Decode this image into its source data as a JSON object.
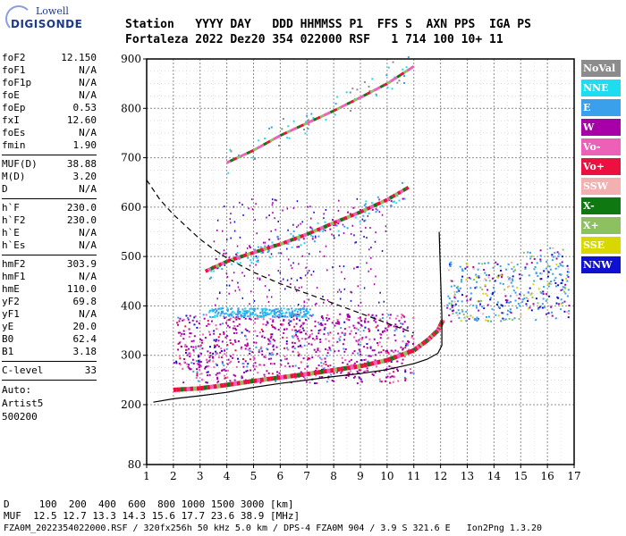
{
  "logo": {
    "line1": "Lowell",
    "line2": "DIGISONDE"
  },
  "header": {
    "line1": "Station   YYYY DAY   DDD HHMMSS P1  FFS S  AXN PPS  IGA PS",
    "line2": "Fortaleza 2022 Dez20 354 022000 RSF   1 714 100 10+ 11"
  },
  "params": {
    "group1": [
      {
        "name": "foF2",
        "value": "12.150"
      },
      {
        "name": "foF1",
        "value": "N/A"
      },
      {
        "name": "foF1p",
        "value": "N/A"
      },
      {
        "name": "foE",
        "value": "N/A"
      },
      {
        "name": "foEp",
        "value": "0.53"
      },
      {
        "name": "fxI",
        "value": "12.60"
      },
      {
        "name": "foEs",
        "value": "N/A"
      },
      {
        "name": "fmin",
        "value": "1.90"
      }
    ],
    "group2": [
      {
        "name": "MUF(D)",
        "value": "38.88"
      },
      {
        "name": "M(D)",
        "value": "3.20"
      },
      {
        "name": "D",
        "value": "N/A"
      }
    ],
    "group3": [
      {
        "name": "h`F",
        "value": "230.0"
      },
      {
        "name": "h`F2",
        "value": "230.0"
      },
      {
        "name": "h`E",
        "value": "N/A"
      },
      {
        "name": "h`Es",
        "value": "N/A"
      }
    ],
    "group4": [
      {
        "name": "hmF2",
        "value": "303.9"
      },
      {
        "name": "hmF1",
        "value": "N/A"
      },
      {
        "name": "hmE",
        "value": "110.0"
      },
      {
        "name": "yF2",
        "value": "69.8"
      },
      {
        "name": "yF1",
        "value": "N/A"
      },
      {
        "name": "yE",
        "value": "20.0"
      },
      {
        "name": "B0",
        "value": "62.4"
      },
      {
        "name": "B1",
        "value": "3.18"
      }
    ],
    "group5": [
      {
        "name": "C-level",
        "value": "33"
      }
    ],
    "auto": {
      "line1": "Auto:",
      "line2": "Artist5",
      "line3": "500200"
    }
  },
  "legend": [
    {
      "label": "NoVal",
      "color": "#8c8c8c"
    },
    {
      "label": "NNE",
      "color": "#20dcf0"
    },
    {
      "label": "E",
      "color": "#3aa0ec"
    },
    {
      "label": "W",
      "color": "#a800a8"
    },
    {
      "label": "Vo-",
      "color": "#ee60b8"
    },
    {
      "label": "Vo+",
      "color": "#ec1040"
    },
    {
      "label": "SSW",
      "color": "#f4b0b0"
    },
    {
      "label": "X-",
      "color": "#107810"
    },
    {
      "label": "X+",
      "color": "#8cc060"
    },
    {
      "label": "SSE",
      "color": "#d8d800"
    },
    {
      "label": "NNW",
      "color": "#1010d0"
    }
  ],
  "footer": {
    "line1": "D     100  200  400  600  800 1000 1500 3000 [km]",
    "line2": "MUF  12.5 12.7 13.3 14.3 15.6 17.7 23.6 38.9 [MHz]",
    "line3": "FZA0M_2022354022000.RSF / 320fx256h 50 kHz 5.0 km / DPS-4 FZA0M 904 / 3.9 S 321.6 E   Ion2Png 1.3.20"
  },
  "chart_data": {
    "type": "scatter",
    "title": "",
    "xlabel": "",
    "ylabel": "",
    "xlim": [
      1,
      17
    ],
    "ylim": [
      80,
      900
    ],
    "x_ticks": [
      1,
      2,
      3,
      4,
      5,
      6,
      7,
      8,
      9,
      10,
      11,
      12,
      13,
      14,
      15,
      16,
      17
    ],
    "y_ticks": [
      80,
      200,
      300,
      400,
      500,
      600,
      700,
      800,
      900
    ],
    "grid": true,
    "dashed_curve": {
      "x": [
        1.0,
        1.5,
        2.0,
        2.5,
        3.0,
        3.5,
        4.0,
        5.0,
        6.0,
        7.0,
        8.0,
        9.0,
        10.0,
        11.0
      ],
      "y": [
        655,
        615,
        585,
        560,
        535,
        515,
        497,
        468,
        445,
        425,
        405,
        385,
        365,
        345
      ]
    },
    "profile_curve": {
      "x": [
        1.25,
        2.0,
        3.0,
        4.0,
        5.0,
        6.0,
        7.0,
        8.0,
        9.0,
        10.0,
        11.0,
        11.5,
        11.9,
        12.05,
        12.05,
        12.0,
        11.95
      ],
      "y": [
        205,
        212,
        218,
        225,
        235,
        243,
        250,
        257,
        263,
        271,
        283,
        292,
        304,
        320,
        380,
        460,
        550
      ]
    },
    "trace_o_mode": {
      "x": [
        2.0,
        3.0,
        4.0,
        5.0,
        6.0,
        7.0,
        8.0,
        9.0,
        10.0,
        11.0,
        11.5,
        11.9,
        12.1
      ],
      "y": [
        230,
        233,
        240,
        248,
        255,
        262,
        270,
        278,
        290,
        310,
        330,
        350,
        372
      ]
    },
    "trace_2hop": {
      "x": [
        3.2,
        4.0,
        5.0,
        6.0,
        7.0,
        8.0,
        9.0,
        10.0,
        10.8
      ],
      "y": [
        470,
        490,
        508,
        525,
        545,
        568,
        590,
        615,
        640
      ]
    },
    "trace_3hop": {
      "x": [
        4.0,
        5.0,
        6.0,
        7.0,
        8.0,
        9.0,
        10.0,
        11.0
      ],
      "y": [
        690,
        715,
        745,
        770,
        795,
        822,
        850,
        885
      ]
    }
  }
}
